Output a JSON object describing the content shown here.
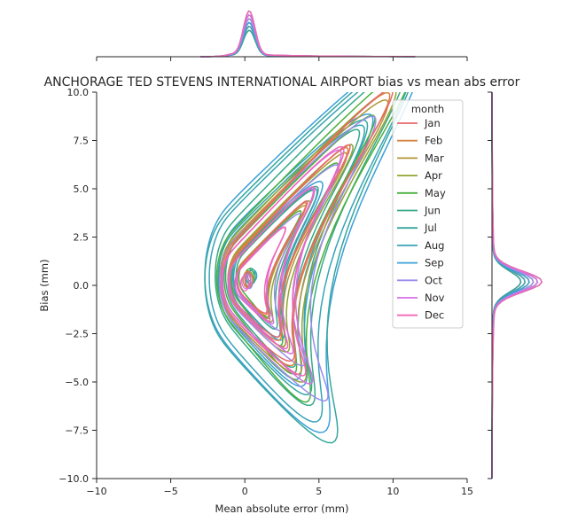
{
  "chart_data": {
    "type": "joint-kde",
    "title": "ANCHORAGE TED STEVENS INTERNATIONAL AIRPORT bias vs mean abs error",
    "xlabel": "Mean absolute error (mm)",
    "ylabel": "Bias (mm)",
    "xlim": [
      -10,
      15
    ],
    "ylim": [
      -10,
      10
    ],
    "xticks": [
      -10,
      -5,
      0,
      5,
      10,
      15
    ],
    "yticks": [
      -10.0,
      -7.5,
      -5.0,
      -2.5,
      0.0,
      2.5,
      5.0,
      7.5,
      10.0
    ],
    "xtick_labels": [
      "−10",
      "−5",
      "0",
      "5",
      "10",
      "15"
    ],
    "ytick_labels": [
      "−10.0",
      "−7.5",
      "−5.0",
      "−2.5",
      "0.0",
      "2.5",
      "5.0",
      "7.5",
      "10.0"
    ],
    "grid": false,
    "legend": {
      "title": "month",
      "placement": "upper right"
    },
    "series": [
      {
        "name": "Jan",
        "color": "#e8696b",
        "marg_x_peak": 0.3,
        "marg_y_peak": 0.2
      },
      {
        "name": "Feb",
        "color": "#d8843f",
        "marg_x_peak": 0.3,
        "marg_y_peak": 0.2
      },
      {
        "name": "Mar",
        "color": "#b39535",
        "marg_x_peak": 0.3,
        "marg_y_peak": 0.2
      },
      {
        "name": "Apr",
        "color": "#94a333",
        "marg_x_peak": 0.3,
        "marg_y_peak": 0.2
      },
      {
        "name": "May",
        "color": "#4ab03f",
        "marg_x_peak": 0.3,
        "marg_y_peak": 0.2
      },
      {
        "name": "Jun",
        "color": "#37a98a",
        "marg_x_peak": 0.3,
        "marg_y_peak": 0.2
      },
      {
        "name": "Jul",
        "color": "#36a69f",
        "marg_x_peak": 0.3,
        "marg_y_peak": 0.2
      },
      {
        "name": "Aug",
        "color": "#38a4b6",
        "marg_x_peak": 0.3,
        "marg_y_peak": 0.2
      },
      {
        "name": "Sep",
        "color": "#3ba0d8",
        "marg_x_peak": 0.3,
        "marg_y_peak": 0.2
      },
      {
        "name": "Oct",
        "color": "#9b8ded",
        "marg_x_peak": 0.3,
        "marg_y_peak": 0.2
      },
      {
        "name": "Nov",
        "color": "#d46fe6",
        "marg_x_peak": 0.3,
        "marg_y_peak": 0.2
      },
      {
        "name": "Dec",
        "color": "#f167b7",
        "marg_x_peak": 0.3,
        "marg_y_peak": 0.2
      }
    ],
    "contour_shapes": [
      {
        "series": "Sep",
        "levels": 3,
        "center": [
          0.5,
          0.5
        ],
        "spread": [
          3.2,
          4.2
        ],
        "tail_to": [
          10.5,
          10.0
        ],
        "low_lobe": [
          4.8,
          -5.5
        ]
      },
      {
        "series": "Jul",
        "levels": 3,
        "center": [
          0.3,
          0.3
        ],
        "spread": [
          3.0,
          4.0
        ],
        "tail_to": [
          10.2,
          9.8
        ],
        "low_lobe": [
          5.8,
          -6.4
        ]
      },
      {
        "series": "Aug",
        "levels": 3,
        "center": [
          0.4,
          0.4
        ],
        "spread": [
          2.8,
          3.8
        ],
        "tail_to": [
          10.0,
          9.5
        ],
        "low_lobe": [
          4.5,
          -5.2
        ]
      },
      {
        "series": "Jun",
        "levels": 3,
        "center": [
          0.4,
          0.5
        ],
        "spread": [
          2.4,
          3.2
        ],
        "tail_to": [
          9.8,
          9.6
        ],
        "low_lobe": [
          4.2,
          -4.8
        ]
      },
      {
        "series": "May",
        "levels": 4,
        "center": [
          0.3,
          0.4
        ],
        "spread": [
          2.2,
          2.8
        ],
        "tail_to": [
          10.5,
          10.0
        ],
        "low_lobe": [
          4.0,
          -5.0
        ]
      },
      {
        "series": "Apr",
        "levels": 3,
        "center": [
          0.3,
          0.3
        ],
        "spread": [
          2.0,
          2.6
        ],
        "tail_to": [
          9.5,
          9.0
        ],
        "low_lobe": [
          3.8,
          -3.8
        ]
      },
      {
        "series": "Mar",
        "levels": 3,
        "center": [
          0.2,
          0.3
        ],
        "spread": [
          1.9,
          2.4
        ],
        "tail_to": [
          9.0,
          8.5
        ],
        "low_lobe": [
          3.5,
          -3.5
        ]
      },
      {
        "series": "Oct",
        "levels": 3,
        "center": [
          0.3,
          0.2
        ],
        "spread": [
          2.0,
          2.5
        ],
        "tail_to": [
          8.0,
          7.5
        ],
        "low_lobe": [
          5.8,
          -5.2
        ]
      },
      {
        "series": "Feb",
        "levels": 3,
        "center": [
          0.2,
          0.3
        ],
        "spread": [
          1.8,
          2.3
        ],
        "tail_to": [
          9.2,
          9.0
        ],
        "low_lobe": [
          3.0,
          -3.0
        ]
      },
      {
        "series": "Jan",
        "levels": 3,
        "center": [
          0.2,
          0.3
        ],
        "spread": [
          1.7,
          2.2
        ],
        "tail_to": [
          9.5,
          9.3
        ],
        "low_lobe": [
          3.0,
          -2.8
        ]
      },
      {
        "series": "Nov",
        "levels": 3,
        "center": [
          0.1,
          0.2
        ],
        "spread": [
          1.6,
          2.0
        ],
        "tail_to": [
          5.8,
          6.0
        ],
        "low_lobe": [
          4.8,
          -4.6
        ]
      },
      {
        "series": "Dec",
        "levels": 3,
        "center": [
          0.0,
          0.1
        ],
        "spread": [
          1.6,
          2.0
        ],
        "tail_to": [
          6.0,
          6.2
        ],
        "low_lobe": [
          4.2,
          -4.0
        ]
      }
    ]
  }
}
